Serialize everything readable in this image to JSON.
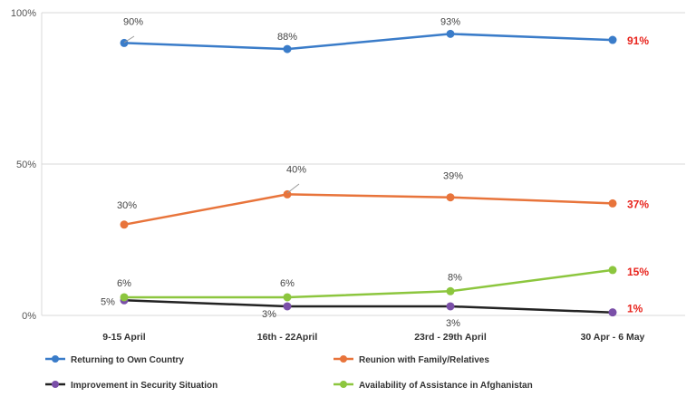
{
  "chart_data": {
    "type": "line",
    "categories": [
      "9-15 April",
      "16th - 22April",
      "23rd - 29th April",
      "30 Apr - 6 May"
    ],
    "ylim": [
      0,
      100
    ],
    "yticks": [
      {
        "value": 0,
        "label": "0%"
      },
      {
        "value": 50,
        "label": "50%"
      },
      {
        "value": 100,
        "label": "100%"
      }
    ],
    "grid": true,
    "legend_position": "bottom",
    "series": [
      {
        "name": "Returning to Own Country",
        "color": "#3a7cc9",
        "values": [
          90,
          88,
          93,
          91
        ],
        "labels": [
          "90%",
          "88%",
          "93%",
          "91%"
        ]
      },
      {
        "name": "Reunion with Family/Relatives",
        "color": "#e8743b",
        "values": [
          30,
          40,
          39,
          37
        ],
        "labels": [
          "30%",
          "40%",
          "39%",
          "37%"
        ]
      },
      {
        "name": "Improvement in Security Situation",
        "color": "#222222",
        "marker_color": "#7a4fa8",
        "values": [
          5,
          3,
          3,
          1
        ],
        "labels": [
          "5%",
          "3%",
          "3%",
          "1%"
        ]
      },
      {
        "name": "Availability of Assistance in Afghanistan",
        "color": "#8cc63e",
        "values": [
          6,
          6,
          8,
          15
        ],
        "labels": [
          "6%",
          "6%",
          "8%",
          "15%"
        ]
      }
    ],
    "last_label_color": "#e8231c"
  }
}
